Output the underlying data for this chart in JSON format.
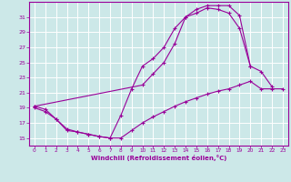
{
  "xlabel": "Windchill (Refroidissement éolien,°C)",
  "bg_color": "#cce8e8",
  "grid_color": "#aaaaaa",
  "line_color": "#990099",
  "xlim": [
    -0.5,
    23.5
  ],
  "ylim": [
    14,
    33
  ],
  "xticks": [
    0,
    1,
    2,
    3,
    4,
    5,
    6,
    7,
    8,
    9,
    10,
    11,
    12,
    13,
    14,
    15,
    16,
    17,
    18,
    19,
    20,
    21,
    22,
    23
  ],
  "yticks": [
    15,
    17,
    19,
    21,
    23,
    25,
    27,
    29,
    31
  ],
  "curve_bottom_x": [
    0,
    1,
    2,
    3,
    4,
    5,
    6,
    7,
    8,
    9,
    10,
    11,
    12,
    13,
    14,
    15,
    16,
    17,
    18,
    19,
    20,
    21,
    22,
    23
  ],
  "curve_bottom_y": [
    19.0,
    18.5,
    17.5,
    16.0,
    15.8,
    15.5,
    15.2,
    15.0,
    15.0,
    16.0,
    17.0,
    17.8,
    18.5,
    19.2,
    19.8,
    20.3,
    20.8,
    21.2,
    21.5,
    22.0,
    22.5,
    21.5,
    21.5,
    21.5
  ],
  "curve_mid_x": [
    0,
    1,
    2,
    3,
    4,
    5,
    6,
    7,
    8,
    9,
    10,
    11,
    12,
    13,
    14,
    15,
    16,
    17,
    18,
    19,
    20,
    21,
    22,
    23
  ],
  "curve_mid_y": [
    19.2,
    18.8,
    17.5,
    16.2,
    15.8,
    15.5,
    15.2,
    15.0,
    18.0,
    21.5,
    24.5,
    25.5,
    27.0,
    29.5,
    31.0,
    31.5,
    32.2,
    32.0,
    31.5,
    29.5,
    24.5,
    23.8,
    21.8,
    null
  ],
  "curve_top_x": [
    0,
    10,
    11,
    12,
    13,
    14,
    15,
    16,
    17,
    18,
    19,
    20
  ],
  "curve_top_y": [
    19.2,
    22.0,
    23.5,
    25.0,
    27.5,
    31.0,
    32.0,
    32.5,
    32.5,
    32.5,
    31.2,
    24.5
  ]
}
